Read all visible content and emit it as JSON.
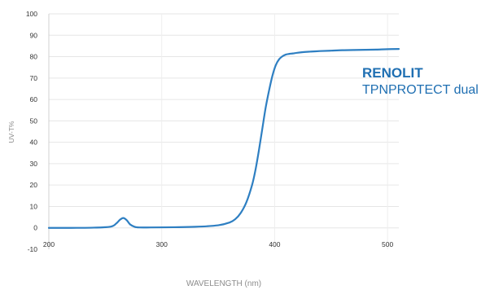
{
  "chart_data": {
    "type": "line",
    "title": "",
    "xlabel": "WAVELENGTH (nm)",
    "ylabel": "UV-T%",
    "xlim": [
      200,
      510
    ],
    "ylim": [
      -10,
      100
    ],
    "x_ticks": [
      200,
      300,
      400,
      500
    ],
    "y_ticks": [
      100,
      90,
      80,
      70,
      60,
      50,
      40,
      30,
      20,
      10,
      0,
      -10
    ],
    "grid": true,
    "series": [
      {
        "color": "#2e7fc2",
        "x": [
          200,
          220,
          240,
          255,
          260,
          263,
          266,
          269,
          272,
          276,
          280,
          290,
          310,
          330,
          350,
          360,
          365,
          370,
          375,
          380,
          383,
          386,
          389,
          392,
          395,
          398,
          401,
          404,
          407,
          410,
          413,
          416,
          420,
          425,
          430,
          440,
          450,
          460,
          470,
          480,
          490,
          500,
          510
        ],
        "y": [
          0,
          0,
          0.1,
          0.6,
          2.2,
          3.8,
          4.6,
          3.6,
          1.6,
          0.5,
          0.2,
          0.2,
          0.3,
          0.5,
          1.2,
          2.5,
          4,
          7,
          12,
          20,
          27,
          36,
          46,
          56,
          64,
          71,
          76,
          78.8,
          80.2,
          81,
          81.3,
          81.5,
          81.8,
          82.1,
          82.3,
          82.6,
          82.8,
          83,
          83.1,
          83.2,
          83.3,
          83.5,
          83.6
        ]
      }
    ]
  },
  "legend": {
    "title": "RENOLIT",
    "subtitle": "TPNPROTECT dual"
  }
}
